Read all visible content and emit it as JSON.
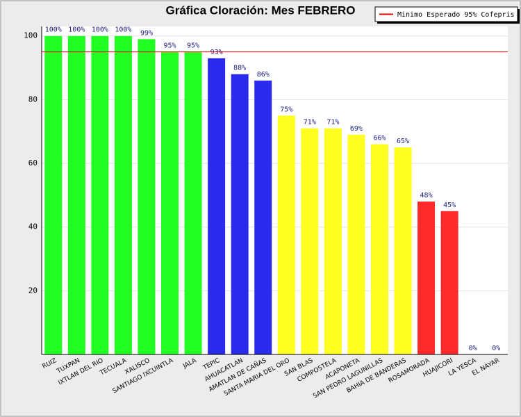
{
  "chart_data": {
    "type": "bar",
    "title": "Gráfica Cloración: Mes FEBRERO",
    "categories": [
      "RUIZ",
      "TUXPAN",
      "IXTLAN DEL RIO",
      "TECUALA",
      "XALISCO",
      "SANTIAGO IXCUINTLA",
      "JALA",
      "TEPIC",
      "AHUACATLAN",
      "AMATLAN DE CAÑAS",
      "SANTA MARIA DEL ORO",
      "SAN BLAS",
      "COMPOSTELA",
      "ACAPONETA",
      "SAN PEDRO LAGUNILLAS",
      "BAHIA DE BANDERAS",
      "ROSAMORADA",
      "HUAJICORI",
      "LA YESCA",
      "EL NAYAR"
    ],
    "values": [
      100,
      100,
      100,
      100,
      99,
      95,
      95,
      93,
      88,
      86,
      75,
      71,
      71,
      69,
      66,
      65,
      48,
      45,
      0,
      0
    ],
    "value_labels": [
      "100%",
      "100%",
      "100%",
      "100%",
      "99%",
      "95%",
      "95%",
      "93%",
      "88%",
      "86%",
      "75%",
      "71%",
      "71%",
      "69%",
      "66%",
      "65%",
      "48%",
      "45%",
      "0%",
      "0%"
    ],
    "colors": [
      "#22ff22",
      "#22ff22",
      "#22ff22",
      "#22ff22",
      "#22ff22",
      "#22ff22",
      "#22ff22",
      "#2b2bee",
      "#2b2bee",
      "#2b2bee",
      "#ffff22",
      "#ffff22",
      "#ffff22",
      "#ffff22",
      "#ffff22",
      "#ffff22",
      "#ff2a2a",
      "#ff2a2a",
      "#ff2a2a",
      "#ff2a2a"
    ],
    "ylim": [
      0,
      103
    ],
    "yticks": [
      20,
      40,
      60,
      80,
      100
    ],
    "grid": true,
    "reference_line": {
      "value": 95,
      "label": "Minimo Esperado 95% Cofepris",
      "color": "#e00000"
    },
    "legend": "top-right"
  }
}
